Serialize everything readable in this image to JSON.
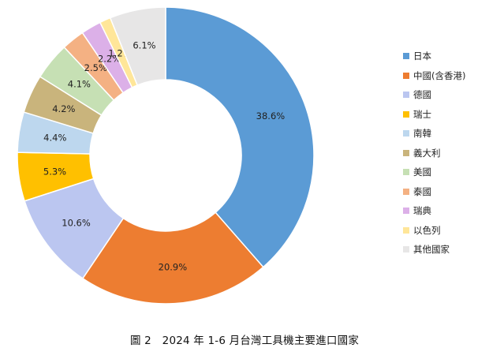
{
  "chart_data": {
    "type": "pie",
    "subtype": "donut",
    "caption": "圖 2　2024 年 1-6 月台灣工具機主要進口國家",
    "legend_position": "right",
    "slices": [
      {
        "name": "日本",
        "value": 38.6,
        "label": "38.6%",
        "color": "#5b9bd5"
      },
      {
        "name": "中國(含香港)",
        "value": 20.9,
        "label": "20.9%",
        "color": "#ed7d31"
      },
      {
        "name": "德國",
        "value": 10.6,
        "label": "10.6%",
        "color": "#bbc6f0"
      },
      {
        "name": "瑞士",
        "value": 5.3,
        "label": "5.3%",
        "color": "#ffc000"
      },
      {
        "name": "南韓",
        "value": 4.4,
        "label": "4.4%",
        "color": "#bdd7ee"
      },
      {
        "name": "義大利",
        "value": 4.2,
        "label": "4.2%",
        "color": "#c9b47c"
      },
      {
        "name": "美國",
        "value": 4.1,
        "label": "4.1%",
        "color": "#c6e0b4"
      },
      {
        "name": "泰國",
        "value": 2.5,
        "label": "2.5%",
        "color": "#f4b183"
      },
      {
        "name": "瑞典",
        "value": 2.2,
        "label": "2.2%",
        "color": "#dcb0e8"
      },
      {
        "name": "以色列",
        "value": 1.2,
        "label": "1.2%",
        "color": "#ffe699"
      },
      {
        "name": "其他國家",
        "value": 6.1,
        "label": "6.1%",
        "color": "#e7e6e6"
      }
    ]
  }
}
